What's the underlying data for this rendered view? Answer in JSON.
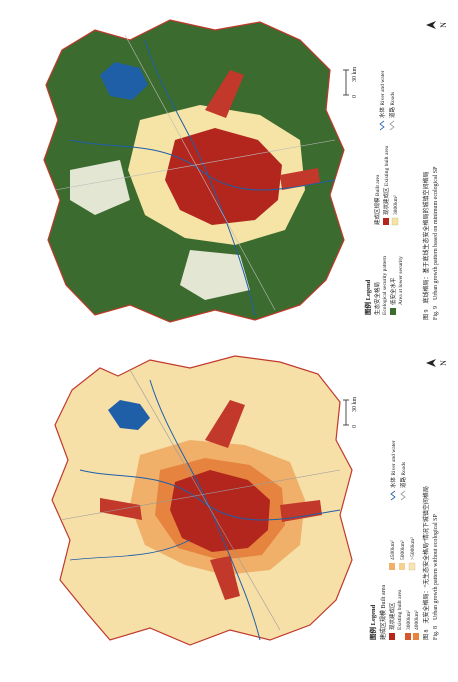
{
  "figure8": {
    "legend_title": "图例 Legend",
    "builtup_title": "建成区规模 Built area",
    "existing_cn": "现状建成区",
    "existing_en": "Existing built area",
    "area_3000": "3000km²",
    "area_4000": "4000km²",
    "area_4500": "4500km²",
    "area_5000": "5000km²",
    "area_gt5000": ">5000km²",
    "river_label": "水体 River and water",
    "road_label": "道路 Roads",
    "scale_zero": "0",
    "scale_30": "30 km",
    "north": "N",
    "caption_cn": "图 8　无安全格局：“无生态安全格局”情况下城镇空间格局",
    "caption_en": "Fig. 8　Urban growth pattern without ecological SP",
    "colors": {
      "existing": "#b3261e",
      "a3000": "#d9552b",
      "a4000": "#e6843f",
      "a4500": "#f0b06a",
      "a5000": "#f6d08e",
      "a_gt5000": "#f9e4b8",
      "water": "#1f5fa8"
    }
  },
  "figure9": {
    "legend_title": "图例 Legend",
    "eco_title": "生态安全格局",
    "eco_en": "Ecological security pattern",
    "low_cn": "低安全水平",
    "low_en": "Area at lower security",
    "builtup_title": "建成区规模 Built area",
    "existing_label": "现状建成区 Existing built area",
    "area_3800": "3800km²",
    "river_label": "水体 River and water",
    "road_label": "道路 Roads",
    "scale_zero": "0",
    "scale_30": "30 km",
    "north": "N",
    "caption_cn": "图 9　底线格局：基于底线生态安全格局的城镇空间格局",
    "caption_en": "Fig. 9　Urban growth pattern based on minimum ecological SP",
    "colors": {
      "existing": "#b3261e",
      "growth": "#f6e3a6",
      "eco": "#3b6b2e",
      "water": "#1f5fa8"
    }
  }
}
